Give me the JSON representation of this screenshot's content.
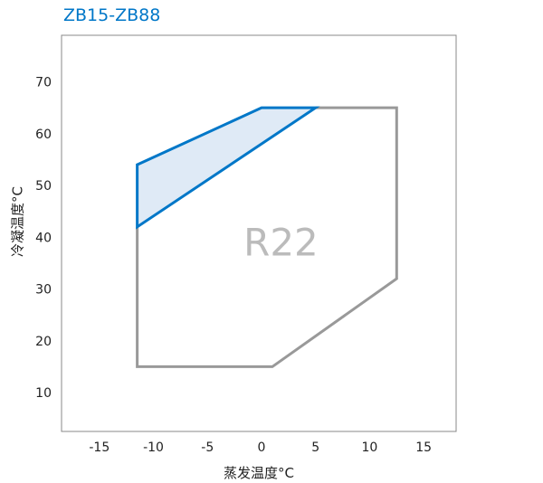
{
  "chart_data": {
    "type": "area",
    "title": "ZB15-ZB88",
    "xlabel": "蒸发温度°C",
    "ylabel": "冷凝温度°C",
    "xlim": [
      -18.5,
      18
    ],
    "ylim": [
      2.5,
      79
    ],
    "xticks": [
      -15,
      -10,
      -5,
      0,
      5,
      10,
      15
    ],
    "yticks": [
      10,
      20,
      30,
      40,
      50,
      60,
      70
    ],
    "grid": false,
    "annotation": "R22",
    "series": [
      {
        "outline": "grey",
        "color": "#999999",
        "points": [
          [
            -11.5,
            42
          ],
          [
            -11.5,
            15
          ],
          [
            1,
            15
          ],
          [
            12.5,
            32
          ],
          [
            12.5,
            65
          ],
          [
            5,
            65
          ]
        ]
      },
      {
        "outline": "blue",
        "color": "#0077c8",
        "fill": "#dfeaf6",
        "points": [
          [
            -11.5,
            42
          ],
          [
            -11.5,
            54
          ],
          [
            0,
            65
          ],
          [
            5,
            65
          ]
        ],
        "closed": true
      }
    ]
  }
}
